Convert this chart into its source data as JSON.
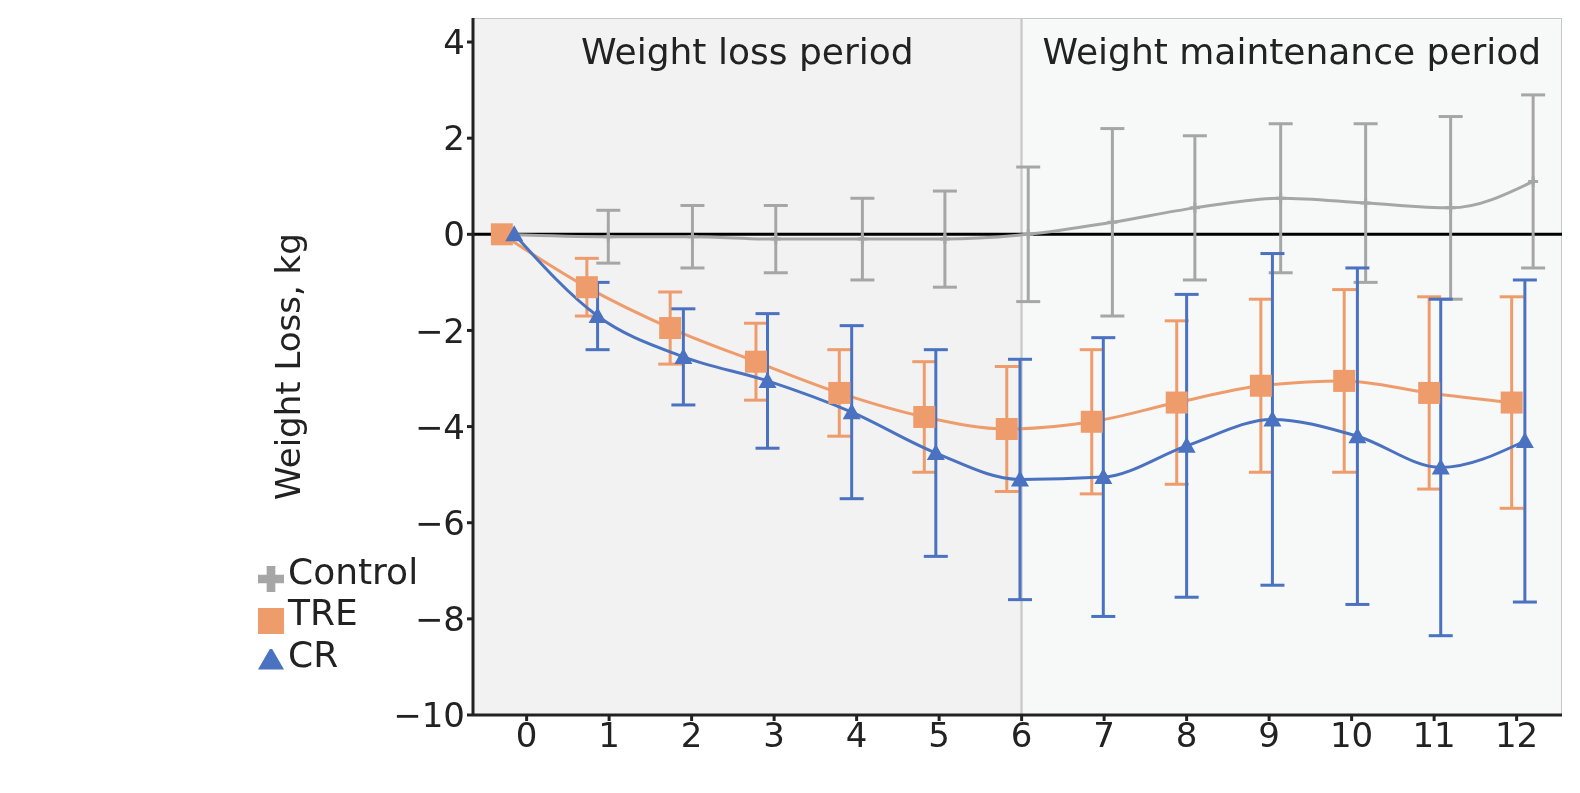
{
  "chart_data": {
    "type": "line",
    "ylabel": "Weight Loss, kg",
    "xlim": [
      -0.65,
      12.55
    ],
    "xticks": [
      0,
      1,
      2,
      3,
      4,
      5,
      6,
      7,
      8,
      9,
      10,
      11,
      12
    ],
    "ylim": [
      -10,
      4.5
    ],
    "yticks": [
      -10,
      -8,
      -6,
      -4,
      -2,
      0,
      2,
      4
    ],
    "legend": "bottom left",
    "line_style": "solid",
    "bands": [
      {
        "axis": "x",
        "from": -0.65,
        "to": 6,
        "label": "Weight loss period",
        "color": "#f2f2f2"
      },
      {
        "axis": "x",
        "from": 6,
        "to": 12.55,
        "label": "Weight maintenance period",
        "color": "#f7f8f8"
      }
    ],
    "ref_lines": [
      {
        "axis": "y",
        "value": 0,
        "color": "#000000"
      }
    ],
    "series": [
      {
        "name": "Control",
        "color": "#a6a6a6",
        "marker": "cross",
        "x": [
          -0.3,
          0.99,
          2.01,
          3.02,
          4.07,
          5.07,
          6.08,
          7.1,
          8.1,
          9.14,
          10.17,
          11.2,
          12.2
        ],
        "values": [
          0,
          -0.05,
          -0.05,
          -0.1,
          -0.1,
          -0.1,
          0,
          0.25,
          0.55,
          0.75,
          0.65,
          0.55,
          1.1
        ],
        "errors": [
          null,
          0.55,
          0.65,
          0.7,
          0.85,
          1.0,
          1.4,
          1.95,
          1.5,
          1.55,
          1.65,
          1.9,
          1.8
        ]
      },
      {
        "name": "TRE",
        "color": "#ee9c6c",
        "marker": "square",
        "x": [
          -0.3,
          0.73,
          1.74,
          2.78,
          3.79,
          4.82,
          5.82,
          6.85,
          7.88,
          8.9,
          9.91,
          10.94,
          11.94
        ],
        "values": [
          0,
          -1.1,
          -1.95,
          -2.65,
          -3.3,
          -3.8,
          -4.05,
          -3.9,
          -3.5,
          -3.15,
          -3.05,
          -3.3,
          -3.5
        ],
        "errors": [
          null,
          0.6,
          0.75,
          0.8,
          0.9,
          1.15,
          1.3,
          1.5,
          1.7,
          1.8,
          1.9,
          2.0,
          2.2
        ]
      },
      {
        "name": "CR",
        "color": "#4a72c0",
        "marker": "triangle",
        "x": [
          -0.15,
          0.86,
          1.9,
          2.92,
          3.94,
          4.96,
          5.98,
          6.99,
          8.0,
          9.04,
          10.07,
          11.08,
          12.1
        ],
        "values": [
          0,
          -1.7,
          -2.55,
          -3.05,
          -3.7,
          -4.55,
          -5.1,
          -5.05,
          -4.4,
          -3.85,
          -4.2,
          -4.85,
          -4.3
        ],
        "errors": [
          null,
          0.7,
          1.0,
          1.4,
          1.8,
          2.15,
          2.5,
          2.9,
          3.15,
          3.45,
          3.5,
          3.5,
          3.35
        ]
      }
    ]
  }
}
